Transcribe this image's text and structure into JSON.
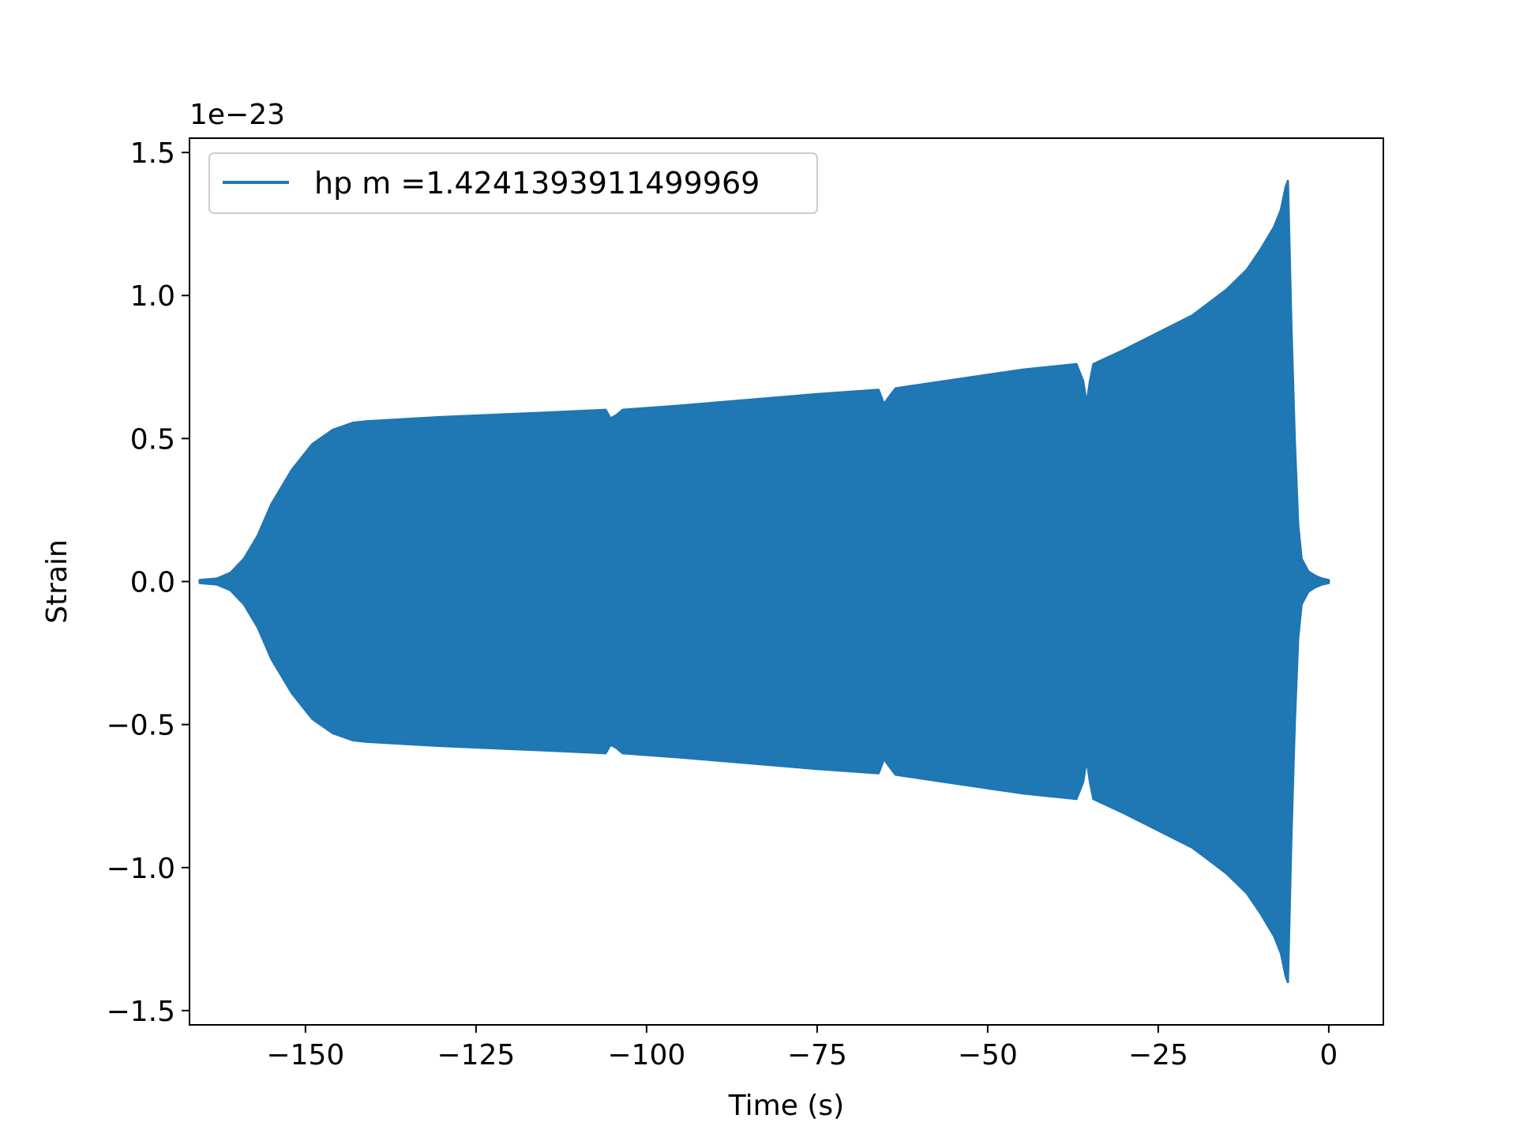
{
  "chart_data": {
    "type": "line",
    "xlabel": "Time (s)",
    "ylabel": "Strain",
    "y_offset_label": "1e−23",
    "xlim": [
      -167,
      8
    ],
    "ylim": [
      -1.55,
      1.55
    ],
    "x_ticks": [
      -150,
      -125,
      -100,
      -75,
      -50,
      -25,
      0
    ],
    "x_tick_labels": [
      "−150",
      "−125",
      "−100",
      "−75",
      "−50",
      "−25",
      "0"
    ],
    "y_ticks": [
      -1.5,
      -1.0,
      -0.5,
      0.0,
      0.5,
      1.0,
      1.5
    ],
    "y_tick_labels": [
      "−1.5",
      "−1.0",
      "−0.5",
      "0.0",
      "0.5",
      "1.0",
      "1.5"
    ],
    "grid": false,
    "legend_placement": "top-left",
    "series": [
      {
        "name": "hp m =1.4241393911499969",
        "color": "#1f77b4",
        "envelope": {
          "t": [
            -165.5,
            -163,
            -161,
            -159,
            -157,
            -155,
            -152,
            -149,
            -146,
            -143,
            -141,
            -130,
            -115,
            -106,
            -105.3,
            -104.5,
            -103.5,
            -95,
            -85,
            -75,
            -66,
            -65.2,
            -64.3,
            -63.5,
            -55,
            -45,
            -37,
            -36,
            -35.5,
            -35,
            -34.5,
            -30,
            -25,
            -20,
            -15,
            -12,
            -10,
            -8,
            -7,
            -6.3,
            -6,
            -5.5,
            -5,
            -4.5,
            -4,
            -3,
            -2,
            -1,
            0
          ],
          "upper": [
            0.005,
            0.01,
            0.03,
            0.08,
            0.16,
            0.27,
            0.39,
            0.48,
            0.53,
            0.555,
            0.56,
            0.575,
            0.59,
            0.6,
            0.57,
            0.58,
            0.6,
            0.615,
            0.635,
            0.655,
            0.67,
            0.62,
            0.65,
            0.675,
            0.705,
            0.74,
            0.76,
            0.7,
            0.62,
            0.7,
            0.76,
            0.81,
            0.87,
            0.93,
            1.02,
            1.09,
            1.16,
            1.24,
            1.3,
            1.38,
            1.4,
            0.9,
            0.5,
            0.2,
            0.08,
            0.035,
            0.02,
            0.01,
            0.005
          ],
          "lower": [
            -0.005,
            -0.01,
            -0.03,
            -0.08,
            -0.16,
            -0.27,
            -0.39,
            -0.48,
            -0.53,
            -0.555,
            -0.56,
            -0.575,
            -0.59,
            -0.6,
            -0.57,
            -0.58,
            -0.6,
            -0.615,
            -0.635,
            -0.655,
            -0.67,
            -0.62,
            -0.65,
            -0.675,
            -0.705,
            -0.74,
            -0.76,
            -0.7,
            -0.62,
            -0.7,
            -0.76,
            -0.81,
            -0.87,
            -0.93,
            -1.02,
            -1.09,
            -1.16,
            -1.24,
            -1.3,
            -1.38,
            -1.4,
            -0.9,
            -0.5,
            -0.2,
            -0.08,
            -0.035,
            -0.02,
            -0.01,
            -0.005
          ]
        }
      }
    ]
  }
}
